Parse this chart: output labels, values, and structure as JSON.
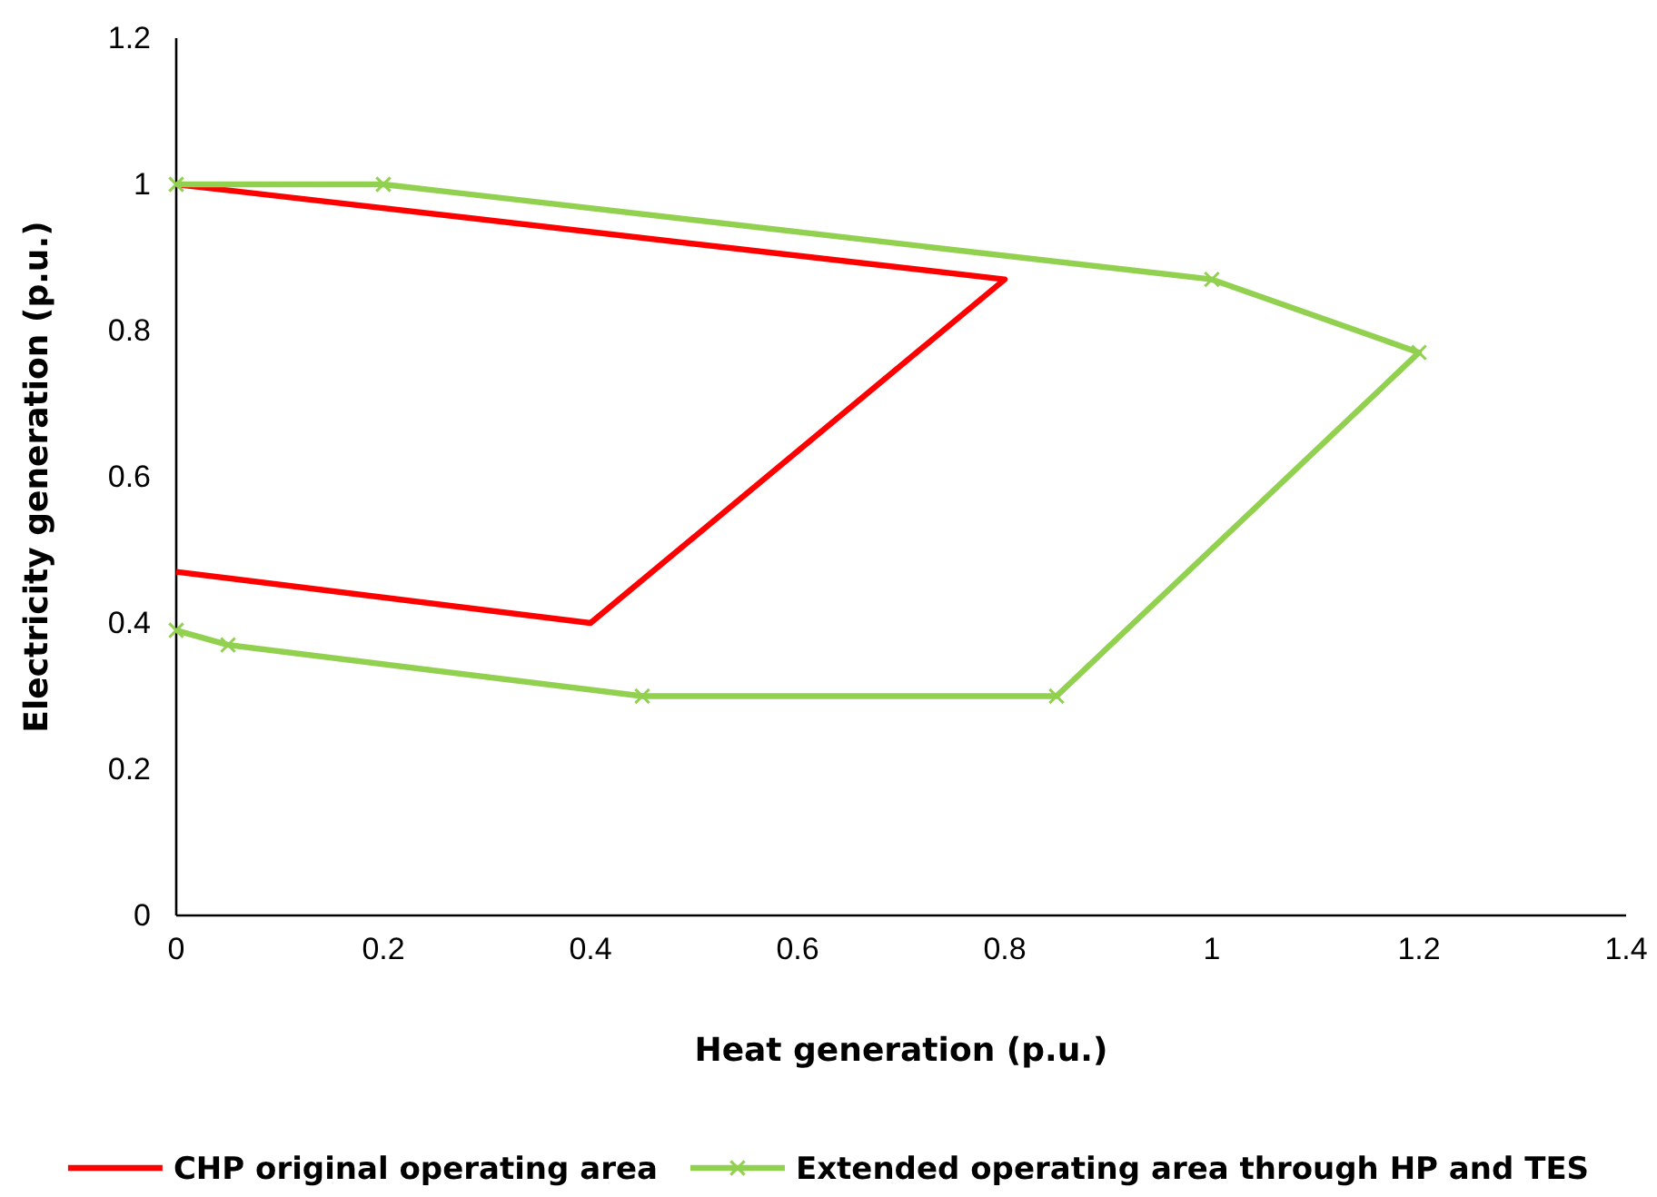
{
  "chart_data": {
    "type": "line",
    "xlabel": "Heat generation (p.u.)",
    "ylabel": "Electricity generation (p.u.)",
    "xlim": [
      0,
      1.4
    ],
    "xticks": [
      0,
      0.2,
      0.4,
      0.6,
      0.8,
      1,
      1.2,
      1.4
    ],
    "ylim": [
      0,
      1.2
    ],
    "yticks": [
      0,
      0.2,
      0.4,
      0.6,
      0.8,
      1,
      1.2
    ],
    "grid": false,
    "legend": "bottom",
    "series": [
      {
        "name": "CHP original operating area",
        "color": "#ff0000",
        "marker": "none",
        "x": [
          0,
          0.8,
          0.4,
          0
        ],
        "values": [
          1,
          0.87,
          0.4,
          0.47
        ]
      },
      {
        "name": "Extended operating area through HP and TES",
        "color": "#92d050",
        "marker": "cross",
        "x": [
          0,
          0.2,
          1,
          1.2,
          0.85,
          0.45,
          0.05,
          0
        ],
        "values": [
          1,
          1,
          0.87,
          0.77,
          0.3,
          0.3,
          0.37,
          0.39
        ]
      }
    ]
  }
}
